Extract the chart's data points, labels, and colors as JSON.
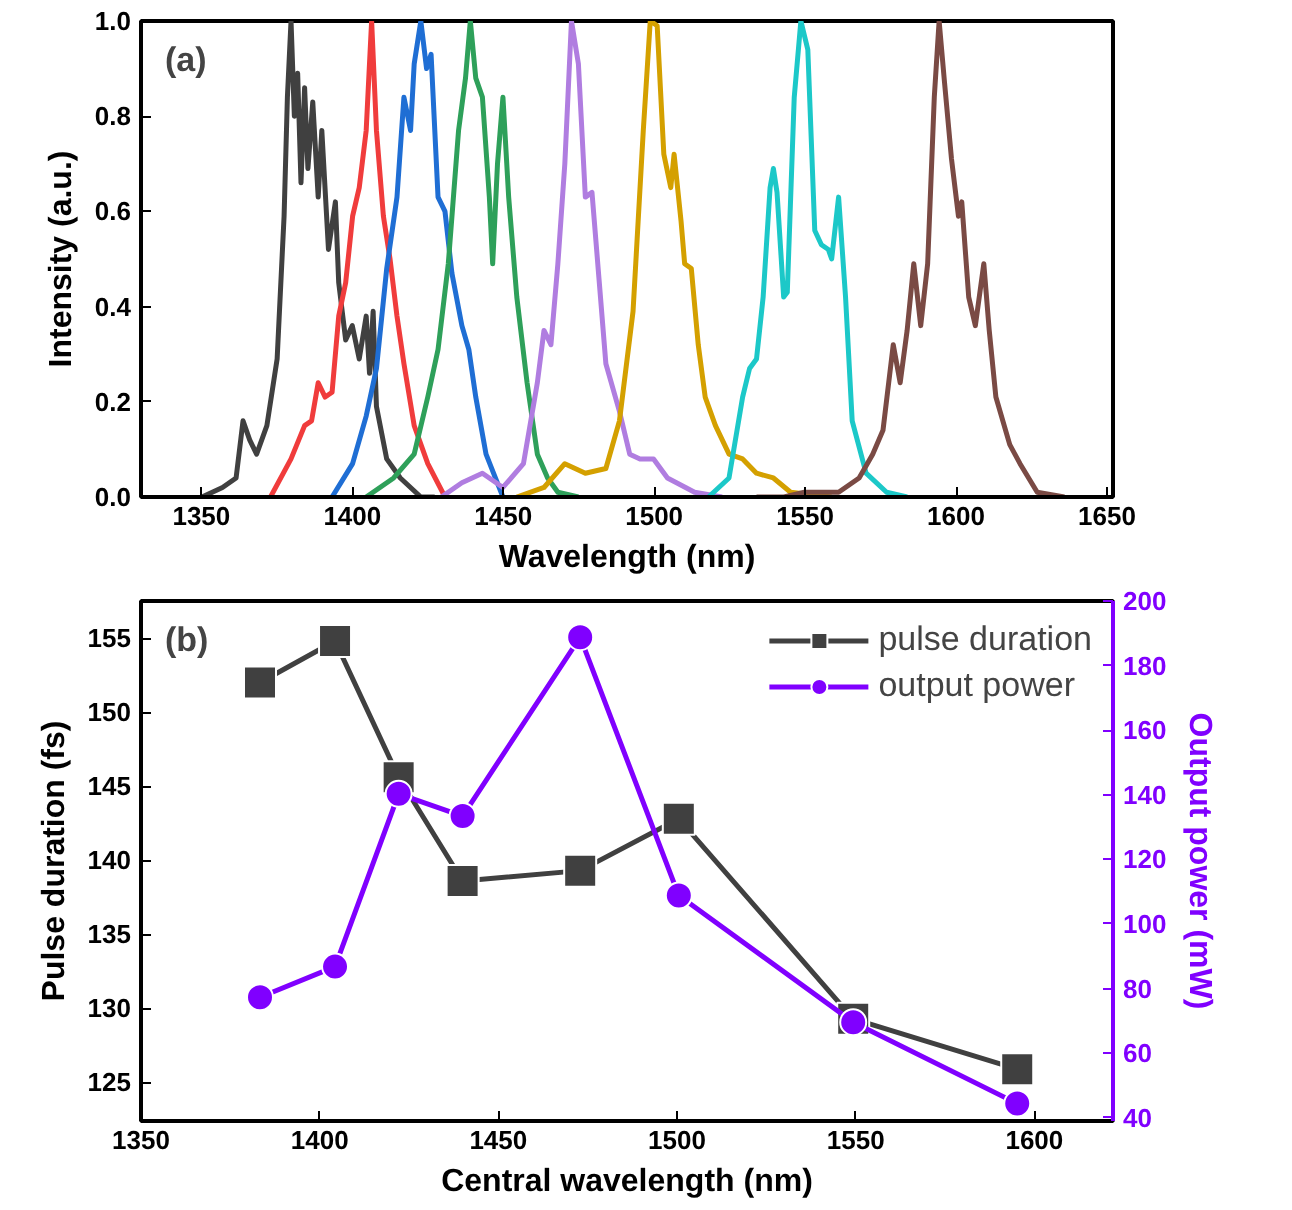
{
  "chart_data": [
    {
      "type": "line",
      "xlabel": "Wavelength (nm)",
      "ylabel": "Intensity (a.u.)",
      "annotations": [
        "(a)"
      ],
      "xlim": [
        1330,
        1652
      ],
      "xticks": [
        1350,
        1400,
        1450,
        1500,
        1550,
        1600,
        1650
      ],
      "ylim": [
        0,
        1
      ],
      "yticks": [
        {
          "value": 0,
          "label": "0.0"
        },
        {
          "value": 0.2,
          "label": "0.2"
        },
        {
          "value": 0.4,
          "label": "0.4"
        },
        {
          "value": 0.6,
          "label": "0.6"
        },
        {
          "value": 0.8,
          "label": "0.8"
        },
        {
          "value": 1,
          "label": "1.0"
        }
      ],
      "grid": false,
      "legend": false,
      "series": [
        {
          "color": "#404040",
          "x": [
            1350.2,
            1357,
            1361.5,
            1363.8,
            1366,
            1368.3,
            1371.7,
            1375.1,
            1377.4,
            1378.5,
            1379.7,
            1380.8,
            1381.9,
            1383,
            1384.2,
            1385.3,
            1386.9,
            1388.7,
            1389.9,
            1392.1,
            1394.4,
            1395.5,
            1397.8,
            1400,
            1402.3,
            1404.6,
            1405.7,
            1406.9,
            1408,
            1411.4,
            1415.9,
            1422.7,
            1427.3
          ],
          "values": [
            0,
            0.02,
            0.04,
            0.16,
            0.12,
            0.09,
            0.15,
            0.29,
            0.59,
            0.84,
            1.0,
            0.8,
            0.89,
            0.66,
            0.86,
            0.69,
            0.83,
            0.63,
            0.77,
            0.52,
            0.62,
            0.45,
            0.33,
            0.36,
            0.29,
            0.38,
            0.26,
            0.39,
            0.19,
            0.08,
            0.04,
            0,
            0
          ]
        },
        {
          "color": "#f03c3c",
          "x": [
            1372.9,
            1379.7,
            1384.2,
            1386.5,
            1388.7,
            1391,
            1393.3,
            1395.5,
            1397.8,
            1400.1,
            1402.3,
            1404.6,
            1406.4,
            1408,
            1410.3,
            1412.5,
            1414.8,
            1417.1,
            1420.5,
            1425,
            1430.7
          ],
          "values": [
            0,
            0.08,
            0.15,
            0.16,
            0.24,
            0.21,
            0.22,
            0.38,
            0.45,
            0.59,
            0.65,
            0.77,
            1.0,
            0.77,
            0.59,
            0.5,
            0.38,
            0.28,
            0.15,
            0.07,
            0
          ]
        },
        {
          "color": "#1f6ed4",
          "x": [
            1393.3,
            1400.1,
            1404.6,
            1408,
            1411.4,
            1414.8,
            1417.1,
            1419.3,
            1420.5,
            1422.7,
            1424.6,
            1426.1,
            1428.4,
            1430.7,
            1433,
            1436.3,
            1438.6,
            1440.9,
            1444.3,
            1449.9
          ],
          "values": [
            0,
            0.07,
            0.17,
            0.27,
            0.48,
            0.63,
            0.84,
            0.77,
            0.91,
            1.0,
            0.9,
            0.93,
            0.63,
            0.6,
            0.47,
            0.36,
            0.31,
            0.21,
            0.09,
            0
          ]
        },
        {
          "color": "#2ea05a",
          "x": [
            1404.6,
            1413.7,
            1420.5,
            1425,
            1428.4,
            1431.8,
            1435.2,
            1437.5,
            1439.1,
            1440.9,
            1443.1,
            1445.4,
            1446.5,
            1448.1,
            1449.9,
            1451.8,
            1454.5,
            1457.9,
            1461.3,
            1464.7,
            1468.1,
            1474.9
          ],
          "values": [
            0,
            0.04,
            0.09,
            0.21,
            0.31,
            0.49,
            0.77,
            0.88,
            1.0,
            0.88,
            0.84,
            0.63,
            0.49,
            0.7,
            0.84,
            0.63,
            0.42,
            0.24,
            0.09,
            0.04,
            0.01,
            0
          ]
        },
        {
          "color": "#b07de0",
          "x": [
            1429.5,
            1436.3,
            1443.1,
            1449.9,
            1456.7,
            1461.3,
            1463.5,
            1465.8,
            1468.1,
            1470.4,
            1472.6,
            1474.9,
            1477.2,
            1479.4,
            1481.7,
            1484,
            1488.5,
            1491.9,
            1495.3,
            1499.8,
            1504.4,
            1513.4,
            1522.5
          ],
          "values": [
            0,
            0.03,
            0.05,
            0.02,
            0.07,
            0.24,
            0.35,
            0.32,
            0.49,
            0.7,
            1.0,
            0.91,
            0.63,
            0.64,
            0.46,
            0.28,
            0.18,
            0.09,
            0.08,
            0.08,
            0.04,
            0.01,
            0
          ]
        },
        {
          "color": "#d4a000",
          "x": [
            1454.5,
            1463.5,
            1470.4,
            1477.2,
            1484,
            1488.5,
            1493,
            1496.4,
            1498.7,
            1501,
            1503.2,
            1505.5,
            1506.6,
            1508.9,
            1510.1,
            1512.3,
            1514.6,
            1516.9,
            1520.3,
            1524.8,
            1529.3,
            1533.9,
            1539.5,
            1545.2,
            1558.8
          ],
          "values": [
            0,
            0.02,
            0.07,
            0.05,
            0.06,
            0.16,
            0.39,
            0.77,
            1.0,
            0.99,
            0.72,
            0.65,
            0.72,
            0.58,
            0.49,
            0.48,
            0.32,
            0.21,
            0.15,
            0.09,
            0.08,
            0.05,
            0.04,
            0.01,
            0
          ]
        },
        {
          "color": "#1cc8c8",
          "x": [
            1518,
            1524.8,
            1529.3,
            1531.6,
            1533.9,
            1536.1,
            1538.4,
            1539.5,
            1540.7,
            1542.9,
            1544.1,
            1546.4,
            1548.6,
            1550.9,
            1553.2,
            1555.4,
            1557.7,
            1558.8,
            1561.1,
            1563.4,
            1565.6,
            1570.2,
            1577,
            1583.8
          ],
          "values": [
            0,
            0.04,
            0.21,
            0.27,
            0.29,
            0.42,
            0.65,
            0.69,
            0.64,
            0.42,
            0.43,
            0.84,
            1.0,
            0.94,
            0.56,
            0.53,
            0.52,
            0.5,
            0.63,
            0.42,
            0.16,
            0.05,
            0.01,
            0
          ]
        },
        {
          "color": "#7a4a44",
          "x": [
            1533.9,
            1543,
            1549.8,
            1561.1,
            1567.9,
            1572.4,
            1575.8,
            1579.2,
            1581.5,
            1583.8,
            1586,
            1588.3,
            1590.6,
            1592.8,
            1594.4,
            1596.2,
            1598.5,
            1600.8,
            1601.9,
            1604.2,
            1606.4,
            1609.2,
            1611,
            1613.2,
            1617.8,
            1621.2,
            1626.9,
            1635.9
          ],
          "values": [
            0,
            0,
            0.01,
            0.01,
            0.04,
            0.09,
            0.14,
            0.32,
            0.24,
            0.35,
            0.49,
            0.36,
            0.49,
            0.84,
            1.0,
            0.87,
            0.71,
            0.59,
            0.62,
            0.42,
            0.36,
            0.49,
            0.35,
            0.21,
            0.11,
            0.07,
            0.01,
            0
          ]
        }
      ]
    },
    {
      "type": "line",
      "xlabel": "Central wavelength (nm)",
      "ylabel": "Pulse duration (fs)",
      "y2label": "Output power (mW)",
      "annotations": [
        "(b)"
      ],
      "x": [
        1383.3,
        1404.3,
        1422.1,
        1440,
        1472.9,
        1500.5,
        1549.3,
        1595.2
      ],
      "xlim": [
        1350,
        1622
      ],
      "xticks": [
        1350,
        1400,
        1450,
        1500,
        1550,
        1600
      ],
      "ylim": [
        122.4,
        157.5
      ],
      "yticks": [
        125,
        130,
        135,
        140,
        145,
        150,
        155
      ],
      "y2lim": [
        39,
        200
      ],
      "y2ticks": [
        40,
        60,
        80,
        100,
        120,
        140,
        160,
        180,
        200
      ],
      "grid": false,
      "legend": "top right",
      "line_style": "solid",
      "series": [
        {
          "name": "pulse duration",
          "color": "#404040",
          "marker": "square",
          "values": [
            152.0,
            154.8,
            145.6,
            138.6,
            139.3,
            142.8,
            129.3,
            125.9
          ]
        },
        {
          "name": "output power",
          "color": "#8000ff",
          "marker": "circle",
          "axis": "y2",
          "values": [
            77.3,
            86.8,
            140.3,
            133.4,
            188.8,
            108.8,
            69.6,
            44.4
          ]
        }
      ]
    }
  ]
}
